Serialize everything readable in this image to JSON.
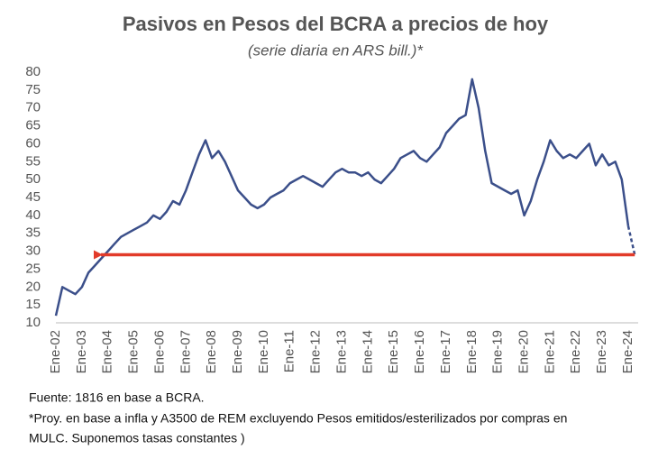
{
  "chart_data": {
    "type": "line",
    "title": "Pasivos en Pesos del BCRA a precios de hoy",
    "subtitle": "(serie diaria en ARS bill.)*",
    "categories": [
      "Ene-02",
      null,
      null,
      null,
      "Ene-03",
      null,
      null,
      null,
      "Ene-04",
      null,
      null,
      null,
      "Ene-05",
      null,
      null,
      null,
      "Ene-06",
      null,
      null,
      null,
      "Ene-07",
      null,
      null,
      null,
      "Ene-08",
      null,
      null,
      null,
      "Ene-09",
      null,
      null,
      null,
      "Ene-10",
      null,
      null,
      null,
      "Ene-11",
      null,
      null,
      null,
      "Ene-12",
      null,
      null,
      null,
      "Ene-13",
      null,
      null,
      null,
      "Ene-14",
      null,
      null,
      null,
      "Ene-15",
      null,
      null,
      null,
      "Ene-16",
      null,
      null,
      null,
      "Ene-17",
      null,
      null,
      null,
      "Ene-18",
      null,
      null,
      null,
      "Ene-19",
      null,
      null,
      null,
      "Ene-20",
      null,
      null,
      null,
      "Ene-21",
      null,
      null,
      null,
      "Ene-22",
      null,
      null,
      null,
      "Ene-23",
      null,
      null,
      null,
      "Ene-24",
      null
    ],
    "series": [
      {
        "color": "#3b4f8a",
        "dashed": false,
        "values": [
          12,
          20,
          19,
          18,
          20,
          24,
          26,
          28,
          30,
          32,
          34,
          35,
          36,
          37,
          38,
          40,
          39,
          41,
          44,
          43,
          47,
          52,
          57,
          61,
          56,
          58,
          55,
          51,
          47,
          45,
          43,
          42,
          43,
          45,
          46,
          47,
          49,
          50,
          51,
          50,
          49,
          48,
          50,
          52,
          53,
          52,
          52,
          51,
          52,
          50,
          49,
          51,
          53,
          56,
          57,
          58,
          56,
          55,
          57,
          59,
          63,
          65,
          67,
          68,
          78,
          70,
          58,
          49,
          48,
          47,
          46,
          47,
          40,
          44,
          50,
          55,
          61,
          58,
          56,
          57,
          56,
          58,
          60,
          54,
          57,
          54,
          55,
          50,
          37,
          null
        ]
      },
      {
        "color": "#3b4f8a",
        "dashed": true,
        "values": [
          null,
          null,
          null,
          null,
          null,
          null,
          null,
          null,
          null,
          null,
          null,
          null,
          null,
          null,
          null,
          null,
          null,
          null,
          null,
          null,
          null,
          null,
          null,
          null,
          null,
          null,
          null,
          null,
          null,
          null,
          null,
          null,
          null,
          null,
          null,
          null,
          null,
          null,
          null,
          null,
          null,
          null,
          null,
          null,
          null,
          null,
          null,
          null,
          null,
          null,
          null,
          null,
          null,
          null,
          null,
          null,
          null,
          null,
          null,
          null,
          null,
          null,
          null,
          null,
          null,
          null,
          null,
          null,
          null,
          null,
          null,
          null,
          null,
          null,
          null,
          null,
          null,
          null,
          null,
          null,
          null,
          null,
          null,
          null,
          null,
          null,
          null,
          null,
          37,
          29
        ]
      }
    ],
    "arrow_color": "#e23b2a",
    "ylim": [
      10,
      80
    ],
    "yticks": [
      10,
      15,
      20,
      25,
      30,
      35,
      40,
      45,
      50,
      55,
      60,
      65,
      70,
      75,
      80
    ],
    "grid": false,
    "notes": [
      "Fuente: 1816 en base a BCRA.",
      "*Proy. en base a infla y A3500 de REM excluyendo Pesos emitidos/esterilizados por compras en",
      "MULC. Suponemos tasas constantes )"
    ]
  }
}
